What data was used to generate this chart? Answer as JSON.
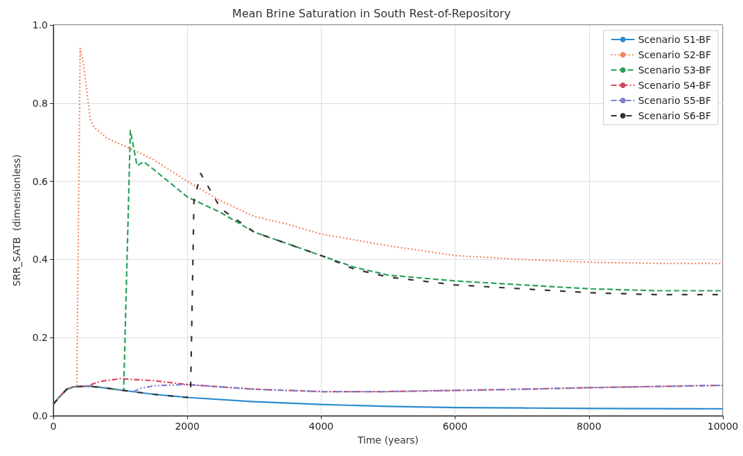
{
  "chart_data": {
    "type": "line",
    "title": "Mean Brine Saturation in South Rest-of-Repository",
    "xlabel": "Time (years)",
    "ylabel": "SRR_SATB  (dimensionless)",
    "xlim": [
      0,
      10000
    ],
    "xticks": [
      0,
      2000,
      4000,
      6000,
      8000,
      10000
    ],
    "ylim": [
      0,
      1
    ],
    "yticks": [
      {
        "value": 0,
        "label": "0.0"
      },
      {
        "value": 0.2,
        "label": "0.2"
      },
      {
        "value": 0.4,
        "label": "0.4"
      },
      {
        "value": 0.6,
        "label": "0.6"
      },
      {
        "value": 0.8,
        "label": "0.8"
      },
      {
        "value": 1,
        "label": "1.0"
      }
    ],
    "grid": true,
    "legend": "top right",
    "marker": "none",
    "series": [
      {
        "name": "Scenario S1-BF",
        "color": "#2a8ccf",
        "line_style": "solid",
        "x": [
          0,
          100,
          200,
          300,
          500,
          700,
          1000,
          1500,
          2000,
          3000,
          4000,
          5000,
          6000,
          7000,
          8000,
          10000
        ],
        "values": [
          0.03,
          0.05,
          0.068,
          0.074,
          0.076,
          0.073,
          0.066,
          0.055,
          0.047,
          0.036,
          0.029,
          0.024,
          0.021,
          0.02,
          0.019,
          0.018
        ]
      },
      {
        "name": "Scenario S2-BF",
        "color": "#f4845f",
        "line_style": "dotted",
        "x": [
          0,
          100,
          200,
          300,
          350,
          400,
          450,
          550,
          600,
          800,
          1000,
          1200,
          1500,
          2000,
          2500,
          3000,
          3500,
          4000,
          5000,
          6000,
          7000,
          8000,
          9000,
          10000
        ],
        "values": [
          0.03,
          0.05,
          0.068,
          0.074,
          0.075,
          0.94,
          0.9,
          0.76,
          0.74,
          0.71,
          0.695,
          0.68,
          0.655,
          0.6,
          0.55,
          0.51,
          0.49,
          0.465,
          0.435,
          0.41,
          0.4,
          0.393,
          0.39,
          0.39
        ]
      },
      {
        "name": "Scenario S3-BF",
        "color": "#2ca05a",
        "line_style": "dashed",
        "x": [
          0,
          100,
          200,
          300,
          500,
          700,
          1050,
          1150,
          1250,
          1350,
          1500,
          2000,
          2500,
          3000,
          3500,
          4000,
          4500,
          5000,
          6000,
          7000,
          8000,
          9000,
          10000
        ],
        "values": [
          0.03,
          0.05,
          0.068,
          0.074,
          0.076,
          0.073,
          0.065,
          0.73,
          0.64,
          0.65,
          0.63,
          0.56,
          0.52,
          0.47,
          0.44,
          0.41,
          0.38,
          0.36,
          0.345,
          0.335,
          0.325,
          0.32,
          0.32
        ]
      },
      {
        "name": "Scenario S4-BF",
        "color": "#d6455e",
        "line_style": "dashdot",
        "x": [
          0,
          100,
          200,
          300,
          500,
          700,
          1000,
          1500,
          2000,
          3000,
          4000,
          5000,
          6000,
          7000,
          8000,
          9000,
          10000
        ],
        "values": [
          0.03,
          0.05,
          0.068,
          0.074,
          0.076,
          0.088,
          0.095,
          0.09,
          0.08,
          0.068,
          0.062,
          0.062,
          0.065,
          0.068,
          0.072,
          0.075,
          0.078
        ]
      },
      {
        "name": "Scenario S5-BF",
        "color": "#7b7fc9",
        "line_style": "dashdotdot",
        "x": [
          0,
          100,
          200,
          300,
          500,
          700,
          1000,
          1200,
          1300,
          1500,
          2000,
          3000,
          4000,
          5000,
          6000,
          7000,
          8000,
          9000,
          10000
        ],
        "values": [
          0.03,
          0.05,
          0.068,
          0.074,
          0.076,
          0.073,
          0.066,
          0.062,
          0.07,
          0.077,
          0.08,
          0.068,
          0.062,
          0.062,
          0.065,
          0.068,
          0.072,
          0.075,
          0.078
        ]
      },
      {
        "name": "Scenario S6-BF",
        "color": "#333333",
        "line_style": "sparse",
        "x": [
          0,
          100,
          200,
          300,
          500,
          700,
          1000,
          1500,
          2000,
          2050,
          2100,
          2200,
          2500,
          3000,
          3500,
          4000,
          4500,
          5000,
          6000,
          7000,
          8000,
          9000,
          10000
        ],
        "values": [
          0.03,
          0.05,
          0.068,
          0.074,
          0.076,
          0.073,
          0.066,
          0.055,
          0.047,
          0.07,
          0.55,
          0.62,
          0.53,
          0.47,
          0.44,
          0.41,
          0.375,
          0.355,
          0.335,
          0.325,
          0.315,
          0.31,
          0.31
        ]
      }
    ]
  }
}
